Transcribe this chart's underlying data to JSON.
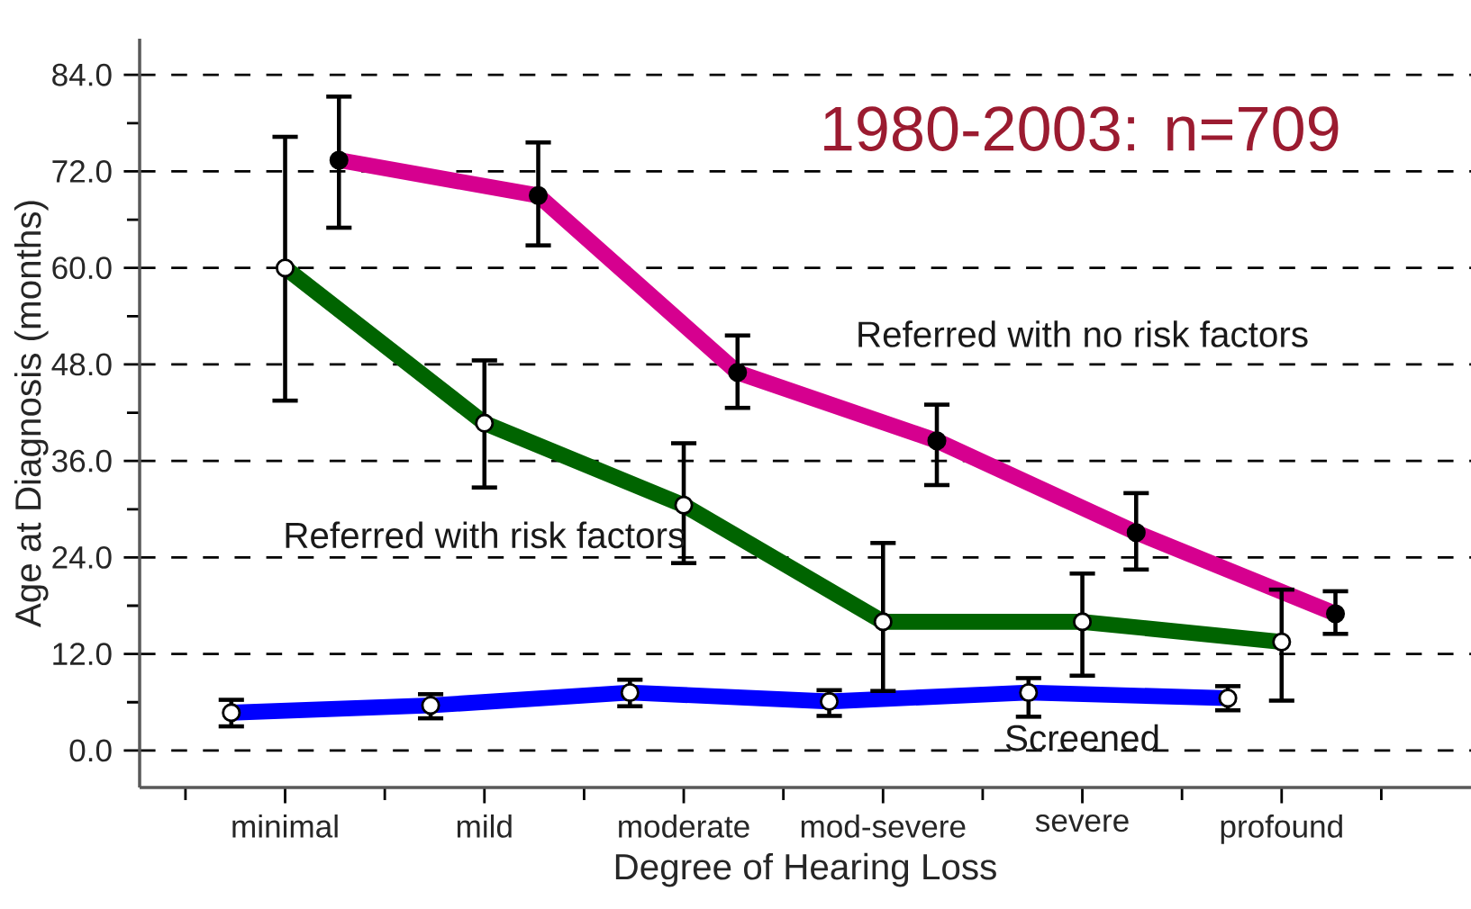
{
  "chart_data": {
    "type": "line",
    "xlabel": "Degree of Hearing Loss",
    "ylabel": "Age at Diagnosis (months)",
    "categories": [
      "minimal",
      "mild",
      "moderate",
      "mod-severe",
      "severe",
      "profound"
    ],
    "series": [
      {
        "name": "Screened",
        "color": "#0000ff",
        "values": [
          4.7,
          5.6,
          7.2,
          6.1,
          7.2,
          6.5
        ],
        "errors": [
          [
            3.0,
            6.3
          ],
          [
            4.0,
            7.0
          ],
          [
            5.5,
            8.8
          ],
          [
            4.3,
            7.5
          ],
          [
            4.2,
            9.0
          ],
          [
            5.0,
            8.0
          ]
        ]
      },
      {
        "name": "Referred with risk factors",
        "color": "#006400",
        "values": [
          60.0,
          40.7,
          30.5,
          16.0,
          16.0,
          13.5
        ],
        "errors": [
          [
            43.5,
            76.3
          ],
          [
            32.7,
            48.5
          ],
          [
            23.3,
            38.2
          ],
          [
            7.4,
            25.8
          ],
          [
            9.3,
            22.0
          ],
          [
            6.2,
            20.0
          ]
        ]
      },
      {
        "name": "Referred with no risk factors",
        "color": "#d6008f",
        "values": [
          73.4,
          69.0,
          47.0,
          38.5,
          27.1,
          17.0
        ],
        "errors": [
          [
            65.0,
            81.3
          ],
          [
            62.8,
            75.6
          ],
          [
            42.6,
            51.6
          ],
          [
            33.0,
            43.0
          ],
          [
            22.5,
            32.0
          ],
          [
            14.5,
            19.8
          ]
        ]
      }
    ],
    "ylim": [
      -4.6,
      88.5
    ],
    "yticks": [
      {
        "value": 0,
        "label": "0.0"
      },
      {
        "value": 12,
        "label": "12.0"
      },
      {
        "value": 24,
        "label": "24.0"
      },
      {
        "value": 36,
        "label": "36.0"
      },
      {
        "value": 48,
        "label": "48.0"
      },
      {
        "value": 60,
        "label": "60.0"
      },
      {
        "value": 72,
        "label": "72.0"
      },
      {
        "value": 84,
        "label": "84.0"
      }
    ],
    "grid": "y",
    "marker": "circle",
    "line_style": "solid",
    "annotations": [
      "1980-2003: n=709"
    ]
  }
}
